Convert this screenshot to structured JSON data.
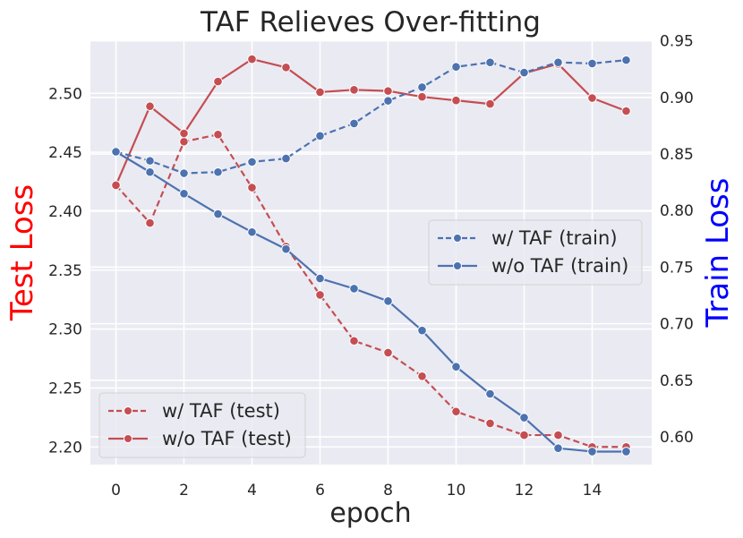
{
  "chart_data": {
    "type": "line",
    "title": "TAF Relieves Over-fitting",
    "xlabel": "epoch",
    "ylabel_left": "Test Loss",
    "ylabel_right": "Train Loss",
    "ylabel_left_color": "#ff0000",
    "ylabel_right_color": "#0000ff",
    "xlim": [
      -0.75,
      15.75
    ],
    "ylim_left": [
      2.185,
      2.545
    ],
    "ylim_right": [
      0.5755,
      0.9505
    ],
    "xticks": [
      0,
      2,
      4,
      6,
      8,
      10,
      12,
      14
    ],
    "xtick_labels": [
      "0",
      "2",
      "4",
      "6",
      "8",
      "10",
      "12",
      "14"
    ],
    "yticks_left": [
      2.2,
      2.25,
      2.3,
      2.35,
      2.4,
      2.45,
      2.5
    ],
    "ytick_labels_left": [
      "2.20",
      "2.25",
      "2.30",
      "2.35",
      "2.40",
      "2.45",
      "2.50"
    ],
    "yticks_right": [
      0.6,
      0.65,
      0.7,
      0.75,
      0.8,
      0.85,
      0.9,
      0.95
    ],
    "ytick_labels_right": [
      "0.60",
      "0.65",
      "0.70",
      "0.75",
      "0.80",
      "0.85",
      "0.90",
      "0.95"
    ],
    "x": [
      0,
      1,
      2,
      3,
      4,
      5,
      6,
      7,
      8,
      9,
      10,
      11,
      12,
      13,
      14,
      15
    ],
    "grid": true,
    "background": "#eaeaf2",
    "series": [
      {
        "name": "w/ TAF (test)",
        "axis": "left",
        "color": "#c44e52",
        "dashed": true,
        "values": [
          2.422,
          2.39,
          2.459,
          2.465,
          2.42,
          2.37,
          2.329,
          2.29,
          2.28,
          2.26,
          2.23,
          2.22,
          2.21,
          2.21,
          2.2,
          2.2
        ]
      },
      {
        "name": "w/o TAF (test)",
        "axis": "left",
        "color": "#c44e52",
        "dashed": false,
        "values": [
          2.422,
          2.489,
          2.466,
          2.51,
          2.529,
          2.522,
          2.501,
          2.503,
          2.502,
          2.497,
          2.494,
          2.491,
          2.517,
          2.525,
          2.496,
          2.485
        ]
      },
      {
        "name": "w/ TAF (train)",
        "axis": "right",
        "color": "#4c72b0",
        "dashed": true,
        "values": [
          0.852,
          0.844,
          0.833,
          0.834,
          0.843,
          0.846,
          0.866,
          0.877,
          0.897,
          0.909,
          0.927,
          0.931,
          0.922,
          0.931,
          0.93,
          0.933
        ]
      },
      {
        "name": "w/o TAF (train)",
        "axis": "right",
        "color": "#4c72b0",
        "dashed": false,
        "values": [
          0.852,
          0.834,
          0.815,
          0.797,
          0.781,
          0.766,
          0.74,
          0.731,
          0.72,
          0.694,
          0.662,
          0.638,
          0.617,
          0.59,
          0.587,
          0.587
        ]
      }
    ],
    "legends": [
      {
        "placement": "right-center",
        "entries": [
          "w/ TAF (train)",
          "w/o TAF (train)"
        ]
      },
      {
        "placement": "bottom-left",
        "entries": [
          "w/ TAF (test)",
          "w/o TAF (test)"
        ]
      }
    ]
  }
}
